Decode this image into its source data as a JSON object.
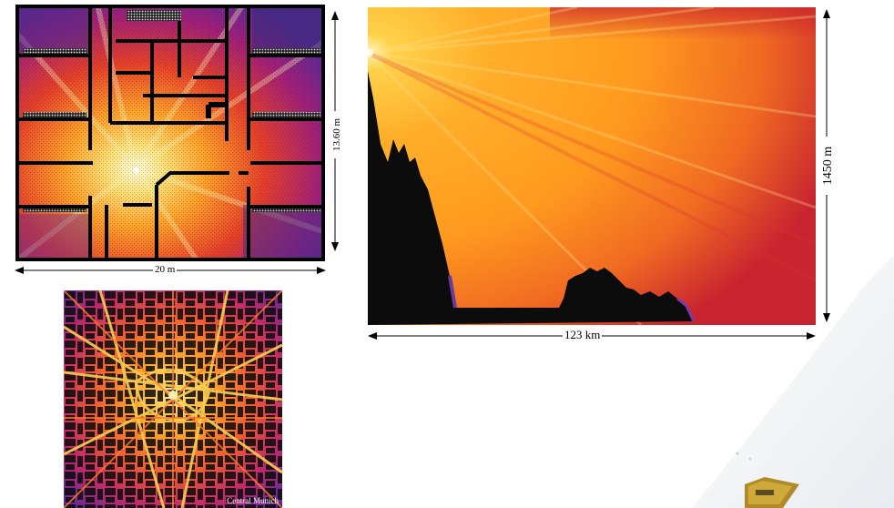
{
  "figures": {
    "indoor": {
      "width_label": "20 m",
      "height_label": "13.60 m"
    },
    "terrain": {
      "width_label": "123 km",
      "height_label": "1450 m"
    },
    "urban": {
      "caption": "Central Munich"
    }
  },
  "colors": {
    "hot": "#fff6b0",
    "orange": "#ff9a1f",
    "red": "#d8262f",
    "purple": "#7a2aa0",
    "dark": "#101010",
    "sky": "#ffffff"
  }
}
